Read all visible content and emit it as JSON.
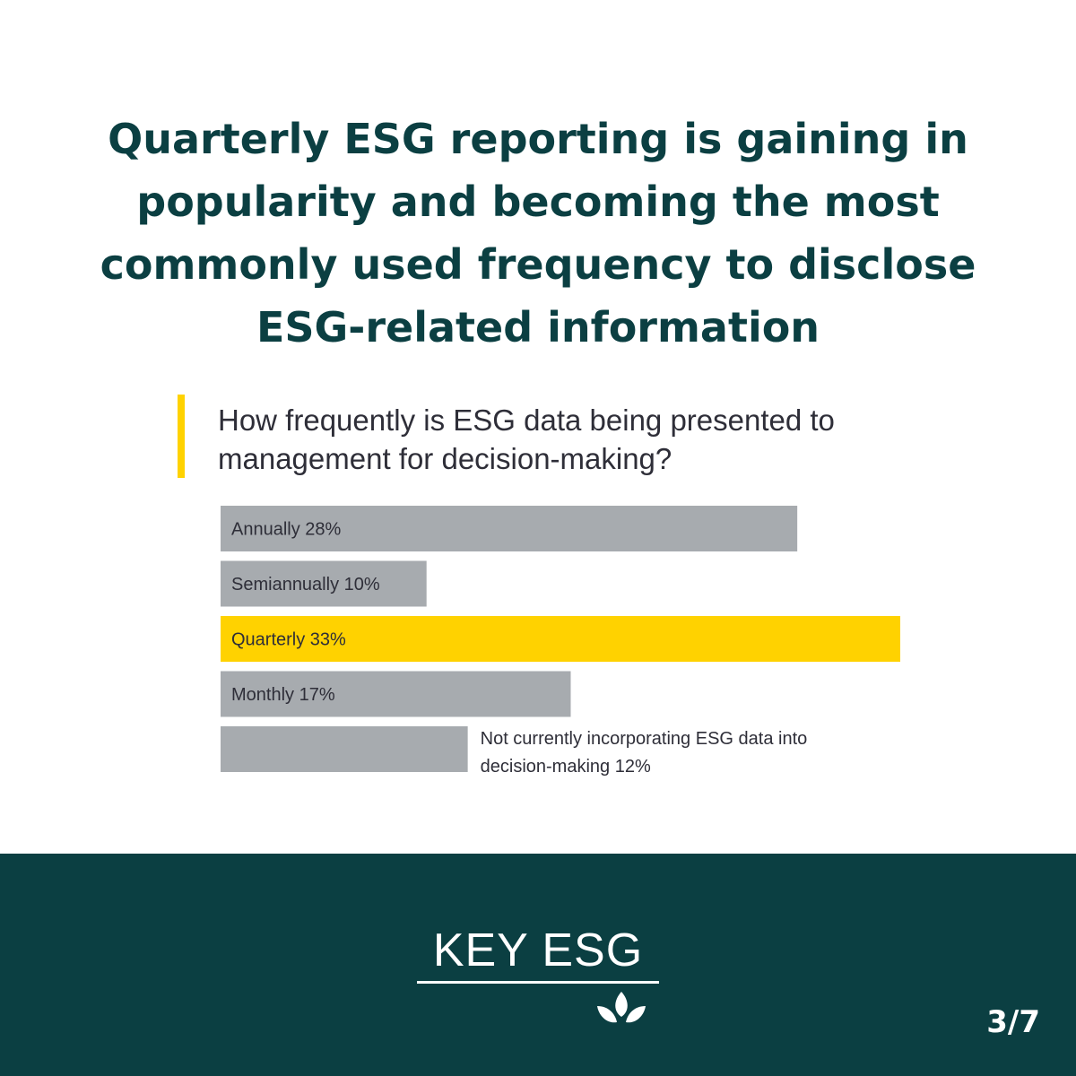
{
  "headline": "Quarterly ESG reporting is gaining in popularity and becoming the most commonly used frequency to disclose ESG-related information",
  "question": "How frequently is ESG data being presented to management for decision-making?",
  "colors": {
    "highlight": "#ffd200",
    "bar": "#a7abaf",
    "brand": "#0b3f42",
    "text": "#2e2e38"
  },
  "chart_data": {
    "type": "bar",
    "orientation": "horizontal",
    "title": "How frequently is ESG data being presented to management for decision-making?",
    "unit": "%",
    "categories": [
      "Annually",
      "Semiannually",
      "Quarterly",
      "Monthly",
      "Not currently incorporating ESG data into decision-making"
    ],
    "values": [
      28,
      10,
      33,
      17,
      12
    ],
    "value_labels": [
      "28%",
      "10%",
      "33%",
      "17%",
      "12%"
    ],
    "highlighted": "Quarterly",
    "grid": false,
    "legend": "none"
  },
  "footer": {
    "brand": "KEY ESG",
    "logo_icon": "leaf-sprout-icon",
    "page_indicator": "3/7"
  }
}
